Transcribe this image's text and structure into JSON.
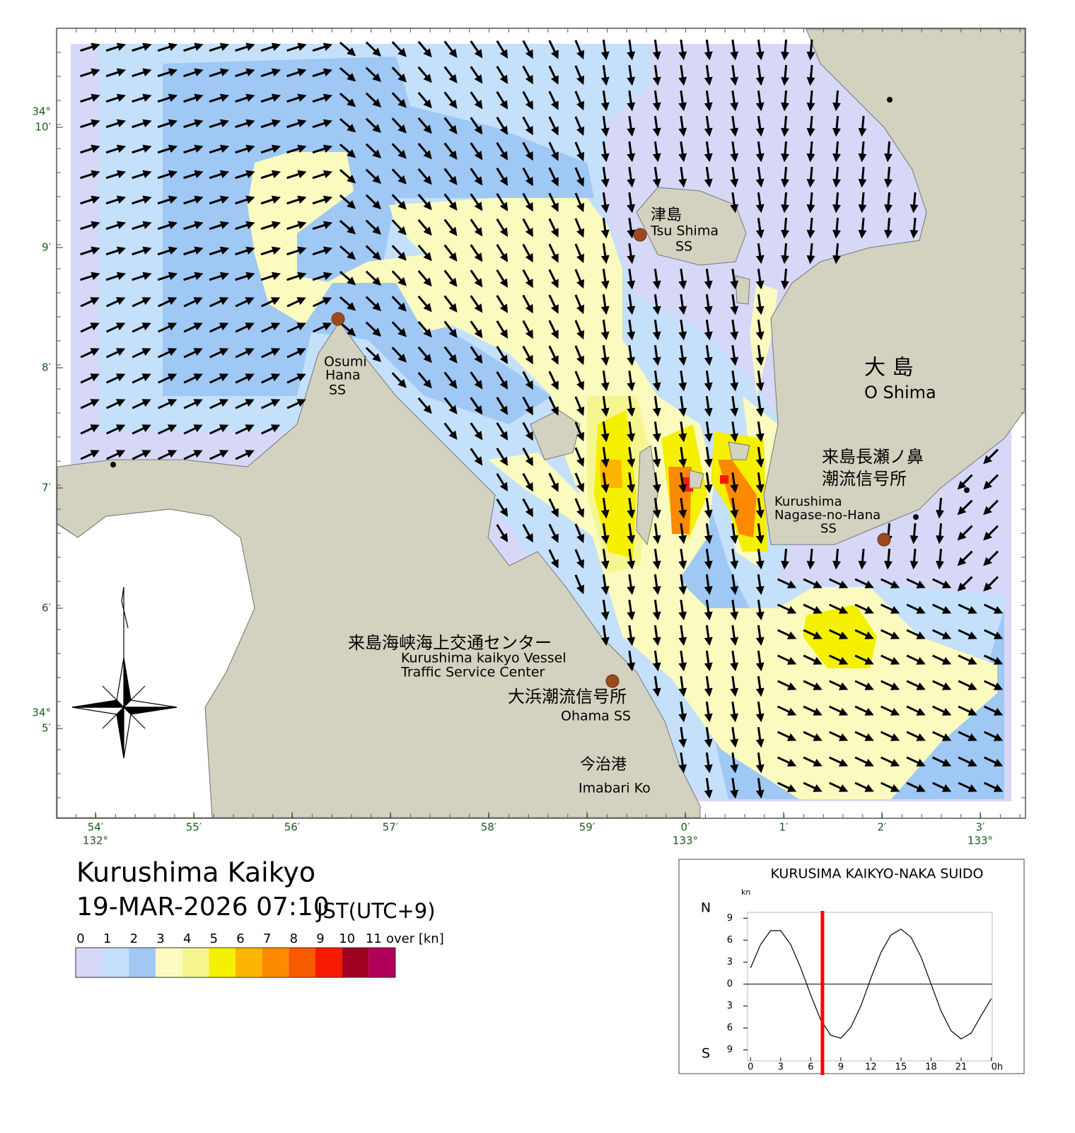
{
  "map": {
    "title": "Kurushima Kaikyo",
    "datetime": "19-MAR-2026 07:10",
    "timezone": "JST(UTC+9)",
    "lon_labels": [
      "54′",
      "55′",
      "56′",
      "57′",
      "58′",
      "59′",
      "0′",
      "1′",
      "2′",
      "3′"
    ],
    "lon_degree_labels": [
      "132°",
      "133°",
      "133°"
    ],
    "lat_labels": [
      "10′",
      "9′",
      "8′",
      "7′",
      "6′",
      "5′"
    ],
    "lat_degree_labels": [
      "34°",
      "34°"
    ],
    "places": [
      {
        "lines": [
          "津島",
          "Tsu Shima",
          "SS"
        ]
      },
      {
        "lines": [
          "Osumi",
          "Hana",
          "SS"
        ]
      },
      {
        "lines": [
          "大 島",
          "O Shima"
        ]
      },
      {
        "lines": [
          "来島長瀬ノ鼻",
          "潮流信号所",
          "Kurushima",
          "Nagase-no-Hana",
          "SS"
        ]
      },
      {
        "lines": [
          "来島海峡海上交通センター",
          "Kurushima kaikyo Vessel",
          "Traffic Service Center"
        ]
      },
      {
        "lines": [
          "大浜潮流信号所",
          "Ohama SS"
        ]
      },
      {
        "lines": [
          "今治港",
          "Imabari Ko"
        ]
      }
    ]
  },
  "colorbar": {
    "levels": [
      0,
      1,
      2,
      3,
      4,
      5,
      6,
      7,
      8,
      9,
      10,
      11
    ],
    "over_label": "over [kn]",
    "colors": [
      "#d7d7f7",
      "#c4e0fb",
      "#9fc8f4",
      "#fbfbc0",
      "#f6f691",
      "#f5ef00",
      "#fbb500",
      "#fb8a00",
      "#f75a00",
      "#f51a00",
      "#a00020",
      "#b0005a"
    ]
  },
  "tide_chart": {
    "type": "line",
    "title": "KURUSIMA KAIKYO-NAKA SUIDO",
    "y_unit": "kn",
    "north_label": "N",
    "south_label": "S",
    "x": [
      0,
      1,
      2,
      3,
      4,
      5,
      6,
      7,
      8,
      9,
      10,
      11,
      12,
      13,
      14,
      15,
      16,
      17,
      18,
      19,
      20,
      21,
      22,
      23,
      24
    ],
    "series": [
      {
        "color": "#000000",
        "values": [
          2.2,
          5.4,
          7.3,
          7.3,
          5.4,
          2.2,
          -1.5,
          -4.9,
          -7.0,
          -7.4,
          -5.9,
          -3.0,
          0.8,
          4.3,
          6.7,
          7.5,
          6.4,
          3.7,
          0,
          -3.7,
          -6.4,
          -7.5,
          -6.7,
          -4.3,
          -2.0
        ]
      }
    ],
    "current_time": 7.17,
    "current_time_color": "#ff0000",
    "xlim": [
      -0.3,
      24.1
    ],
    "ylim": [
      -10.5,
      9.8
    ],
    "xticks": [
      0,
      3,
      6,
      9,
      12,
      15,
      18,
      21,
      {
        "value": 24,
        "label": "0h"
      }
    ],
    "yticks": [
      {
        "value": -9,
        "label": "9"
      },
      {
        "value": -6,
        "label": "6"
      },
      {
        "value": -3,
        "label": "3"
      },
      0,
      3,
      6,
      9
    ]
  }
}
